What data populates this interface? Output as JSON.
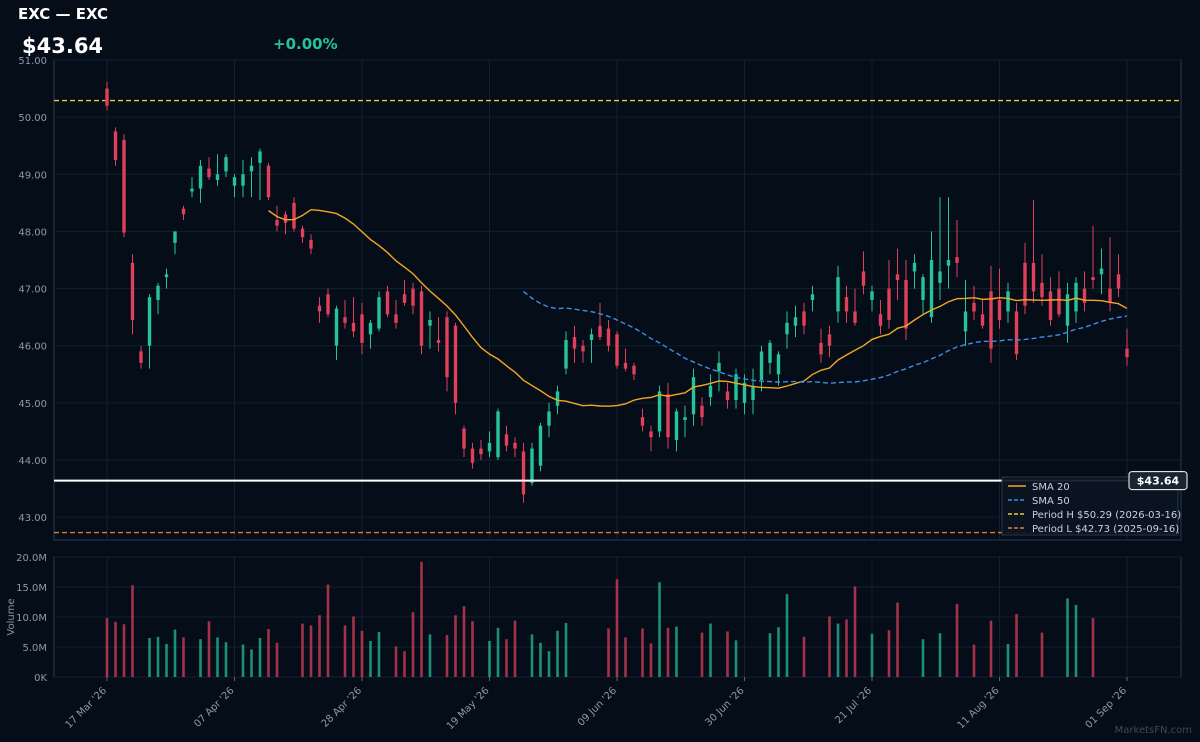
{
  "header": {
    "title": "EXC — EXC",
    "price": "$43.64",
    "change": "+0.00%"
  },
  "watermark": "MarketsFN.com",
  "colors": {
    "background": "#050d18",
    "up": "#26c39a",
    "down": "#e0405a",
    "sma20": "#f5a623",
    "sma50": "#3d8fe0",
    "period_high": "#e8c93a",
    "period_low": "#e07a3a",
    "grid": "#13202f",
    "axis": "#2a3a52"
  },
  "chart_data": {
    "type": "candlestick",
    "price_axis": {
      "min": 42.6,
      "max": 51.0,
      "ticks": [
        "43.00",
        "44.00",
        "45.00",
        "46.00",
        "47.00",
        "48.00",
        "49.00",
        "50.00",
        "51.00"
      ]
    },
    "volume_axis": {
      "min": 0,
      "max": 20.0,
      "ticks": [
        "0K",
        "5.0M",
        "10.0M",
        "15.0M",
        "20.0M"
      ],
      "label": "Volume"
    },
    "x_ticks": [
      {
        "label": "17 Mar '26",
        "index": 0
      },
      {
        "label": "07 Apr '26",
        "index": 15
      },
      {
        "label": "28 Apr '26",
        "index": 30
      },
      {
        "label": "19 May '26",
        "index": 45
      },
      {
        "label": "09 Jun '26",
        "index": 60
      },
      {
        "label": "30 Jun '26",
        "index": 75
      },
      {
        "label": "21 Jul '26",
        "index": 90
      },
      {
        "label": "11 Aug '26",
        "index": 105
      },
      {
        "label": "01 Sep '26",
        "index": 120
      }
    ],
    "candles": [
      [
        50.5,
        50.62,
        50.12,
        50.2,
        9.8
      ],
      [
        49.75,
        49.82,
        49.15,
        49.25,
        9.2
      ],
      [
        49.6,
        49.7,
        47.9,
        47.98,
        8.8
      ],
      [
        47.45,
        47.6,
        46.2,
        46.45,
        15.3
      ],
      [
        45.9,
        46.0,
        45.6,
        45.7,
        0
      ],
      [
        46.0,
        46.9,
        45.6,
        46.85,
        6.5
      ],
      [
        46.8,
        47.1,
        46.55,
        47.05,
        6.7
      ],
      [
        47.2,
        47.35,
        47.0,
        47.25,
        5.5
      ],
      [
        47.8,
        48.0,
        47.6,
        48.0,
        7.9
      ],
      [
        48.4,
        48.45,
        48.2,
        48.3,
        6.6
      ],
      [
        48.7,
        48.95,
        48.6,
        48.75,
        0
      ],
      [
        48.75,
        49.25,
        48.5,
        49.15,
        6.3
      ],
      [
        49.1,
        49.3,
        48.9,
        48.95,
        9.3
      ],
      [
        48.9,
        49.35,
        48.8,
        49.0,
        6.6
      ],
      [
        49.05,
        49.35,
        48.95,
        49.3,
        5.8
      ],
      [
        48.8,
        49.0,
        48.6,
        48.95,
        0
      ],
      [
        48.8,
        49.25,
        48.6,
        49.0,
        5.4
      ],
      [
        49.05,
        49.3,
        48.6,
        49.15,
        4.6
      ],
      [
        49.2,
        49.45,
        48.55,
        49.4,
        6.5
      ],
      [
        49.15,
        49.2,
        48.55,
        48.6,
        8.0
      ],
      [
        48.2,
        48.45,
        48.0,
        48.1,
        5.7
      ],
      [
        48.3,
        48.35,
        47.95,
        48.15,
        0
      ],
      [
        48.5,
        48.6,
        48.0,
        48.05,
        0
      ],
      [
        48.05,
        48.1,
        47.8,
        47.9,
        8.9
      ],
      [
        47.85,
        47.95,
        47.6,
        47.7,
        8.6
      ],
      [
        46.7,
        46.85,
        46.4,
        46.6,
        10.3
      ],
      [
        46.9,
        47.0,
        46.5,
        46.55,
        15.4
      ],
      [
        46.0,
        46.7,
        45.75,
        46.65,
        0
      ],
      [
        46.5,
        46.8,
        46.3,
        46.4,
        8.6
      ],
      [
        46.4,
        46.85,
        46.15,
        46.25,
        10.1
      ],
      [
        46.55,
        46.75,
        45.85,
        46.05,
        7.7
      ],
      [
        46.2,
        46.45,
        45.95,
        46.4,
        6.0
      ],
      [
        46.3,
        46.95,
        46.25,
        46.85,
        7.5
      ],
      [
        46.95,
        47.05,
        46.5,
        46.55,
        0
      ],
      [
        46.55,
        46.8,
        46.3,
        46.4,
        5.1
      ],
      [
        46.9,
        47.15,
        46.7,
        46.75,
        4.3
      ],
      [
        47.0,
        47.1,
        46.55,
        46.7,
        10.8
      ],
      [
        46.95,
        47.05,
        45.85,
        46.0,
        19.2
      ],
      [
        46.35,
        46.6,
        45.95,
        46.45,
        7.1
      ],
      [
        46.1,
        46.5,
        45.9,
        46.05,
        0
      ],
      [
        46.5,
        46.6,
        45.2,
        45.45,
        7.0
      ],
      [
        46.35,
        46.4,
        44.8,
        45.0,
        10.3
      ],
      [
        44.55,
        44.6,
        44.05,
        44.2,
        11.8
      ],
      [
        44.2,
        44.3,
        43.85,
        43.95,
        9.3
      ],
      [
        44.2,
        44.35,
        44.0,
        44.1,
        0
      ],
      [
        44.15,
        44.5,
        44.05,
        44.3,
        6.0
      ],
      [
        44.05,
        44.9,
        44.0,
        44.85,
        8.2
      ],
      [
        44.45,
        44.6,
        44.15,
        44.25,
        6.3
      ],
      [
        44.3,
        44.4,
        44.05,
        44.2,
        9.4
      ],
      [
        44.15,
        44.3,
        43.25,
        43.4,
        0
      ],
      [
        43.6,
        44.3,
        43.55,
        44.2,
        7.1
      ],
      [
        43.9,
        44.65,
        43.8,
        44.6,
        5.7
      ],
      [
        44.6,
        45.0,
        44.4,
        44.85,
        4.3
      ],
      [
        44.95,
        45.3,
        44.8,
        45.2,
        7.7
      ],
      [
        45.6,
        46.25,
        45.5,
        46.1,
        9.0
      ],
      [
        46.15,
        46.35,
        45.7,
        45.95,
        0
      ],
      [
        46.0,
        46.1,
        45.7,
        45.9,
        0
      ],
      [
        46.1,
        46.3,
        45.7,
        46.2,
        0
      ],
      [
        46.35,
        46.75,
        46.1,
        46.15,
        0
      ],
      [
        46.3,
        46.45,
        45.9,
        46.0,
        8.1
      ],
      [
        46.2,
        46.25,
        45.6,
        45.65,
        16.3
      ],
      [
        45.7,
        45.95,
        45.55,
        45.6,
        6.6
      ],
      [
        45.65,
        45.7,
        45.4,
        45.5,
        0
      ],
      [
        44.75,
        44.9,
        44.5,
        44.6,
        8.1
      ],
      [
        44.5,
        44.6,
        44.15,
        44.4,
        5.6
      ],
      [
        44.5,
        45.3,
        44.4,
        45.2,
        15.8
      ],
      [
        45.15,
        45.35,
        44.2,
        44.4,
        8.2
      ],
      [
        44.35,
        44.9,
        44.15,
        44.85,
        8.4
      ],
      [
        44.7,
        44.95,
        44.4,
        44.75,
        0
      ],
      [
        44.8,
        45.6,
        44.6,
        45.45,
        0
      ],
      [
        44.95,
        45.1,
        44.6,
        44.75,
        7.4
      ],
      [
        45.1,
        45.5,
        44.95,
        45.3,
        8.9
      ],
      [
        45.55,
        45.9,
        45.2,
        45.7,
        0
      ],
      [
        45.2,
        45.35,
        44.9,
        45.05,
        7.6
      ],
      [
        45.05,
        45.6,
        44.9,
        45.5,
        6.1
      ],
      [
        45.0,
        45.5,
        44.8,
        45.35,
        0
      ],
      [
        45.05,
        45.6,
        44.8,
        45.3,
        0
      ],
      [
        45.4,
        46.0,
        45.2,
        45.9,
        0
      ],
      [
        45.7,
        46.1,
        45.5,
        46.05,
        7.3
      ],
      [
        45.5,
        45.9,
        45.3,
        45.85,
        8.3
      ],
      [
        46.2,
        46.6,
        45.95,
        46.4,
        13.8
      ],
      [
        46.35,
        46.7,
        46.15,
        46.5,
        0
      ],
      [
        46.6,
        46.75,
        46.2,
        46.35,
        6.7
      ],
      [
        46.8,
        47.05,
        46.6,
        46.9,
        0
      ],
      [
        46.05,
        46.3,
        45.7,
        45.85,
        0
      ],
      [
        46.2,
        46.35,
        45.8,
        46.0,
        10.1
      ],
      [
        46.6,
        47.4,
        46.4,
        47.2,
        8.9
      ],
      [
        46.85,
        47.05,
        46.4,
        46.6,
        9.6
      ],
      [
        46.6,
        47.0,
        46.35,
        46.4,
        15.1
      ],
      [
        47.3,
        47.65,
        46.9,
        47.05,
        0
      ],
      [
        46.8,
        47.05,
        46.6,
        46.95,
        7.2
      ],
      [
        46.55,
        46.8,
        46.2,
        46.35,
        0
      ],
      [
        47.0,
        47.5,
        46.3,
        46.45,
        7.8
      ],
      [
        47.25,
        47.7,
        46.8,
        47.15,
        12.4
      ],
      [
        47.15,
        47.5,
        46.1,
        46.3,
        0
      ],
      [
        47.3,
        47.6,
        47.0,
        47.45,
        0
      ],
      [
        46.8,
        47.25,
        46.55,
        47.2,
        6.3
      ],
      [
        46.5,
        48.0,
        46.4,
        47.5,
        0
      ],
      [
        47.1,
        48.6,
        46.8,
        47.3,
        7.3
      ],
      [
        47.4,
        48.6,
        47.0,
        47.5,
        0
      ],
      [
        47.55,
        48.2,
        47.2,
        47.45,
        12.2
      ],
      [
        46.25,
        47.15,
        46.0,
        46.6,
        0
      ],
      [
        46.75,
        47.05,
        46.45,
        46.6,
        5.4
      ],
      [
        46.55,
        46.8,
        46.3,
        46.35,
        0
      ],
      [
        46.95,
        47.4,
        45.7,
        45.95,
        9.4
      ],
      [
        46.8,
        47.35,
        46.3,
        46.45,
        0
      ],
      [
        46.6,
        47.1,
        46.4,
        46.95,
        5.5
      ],
      [
        46.6,
        46.75,
        45.75,
        45.85,
        10.5
      ],
      [
        47.45,
        47.8,
        46.55,
        46.7,
        0
      ],
      [
        47.45,
        48.55,
        46.75,
        46.95,
        0
      ],
      [
        47.1,
        47.6,
        46.7,
        46.85,
        7.4
      ],
      [
        46.95,
        47.2,
        46.35,
        46.45,
        0
      ],
      [
        47.0,
        47.3,
        46.5,
        46.55,
        0
      ],
      [
        46.35,
        47.1,
        46.05,
        46.9,
        13.1
      ],
      [
        46.6,
        47.2,
        46.4,
        47.1,
        12.0
      ],
      [
        47.0,
        47.3,
        46.6,
        46.75,
        0
      ],
      [
        47.2,
        48.1,
        47.0,
        47.15,
        9.8
      ],
      [
        47.25,
        47.7,
        46.9,
        47.35,
        0
      ],
      [
        47.0,
        47.9,
        46.6,
        46.75,
        0
      ],
      [
        47.25,
        47.6,
        46.85,
        47.0,
        0
      ],
      [
        45.95,
        46.3,
        45.65,
        45.8,
        0
      ]
    ],
    "sma20": [],
    "sma50": [],
    "period_high": {
      "value": 50.29,
      "label": "Period H $50.29 (2026-03-16)"
    },
    "period_low": {
      "value": 42.73,
      "label": "Period L $42.73 (2025-09-16)"
    },
    "last_price": {
      "value": 43.64,
      "label": "$43.64"
    },
    "legend": [
      {
        "label": "SMA 20",
        "style": "solid",
        "color": "#f5a623"
      },
      {
        "label": "SMA 50",
        "style": "dashed",
        "color": "#3d8fe0"
      },
      {
        "label": "Period H $50.29 (2026-03-16)",
        "style": "dashed",
        "color": "#e8c93a"
      },
      {
        "label": "Period L $42.73 (2025-09-16)",
        "style": "dashed",
        "color": "#e07a3a"
      }
    ]
  }
}
